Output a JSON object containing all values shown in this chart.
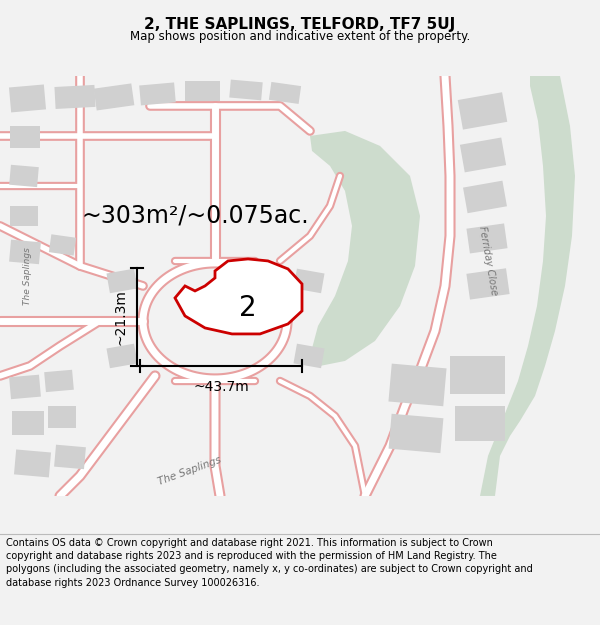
{
  "title": "2, THE SAPLINGS, TELFORD, TF7 5UJ",
  "subtitle": "Map shows position and indicative extent of the property.",
  "area_text": "~303m²/~0.075ac.",
  "width_text": "~43.7m",
  "height_text": "~21.3m",
  "label_number": "2",
  "footer_text": "Contains OS data © Crown copyright and database right 2021. This information is subject to Crown copyright and database rights 2023 and is reproduced with the permission of HM Land Registry. The polygons (including the associated geometry, namely x, y co-ordinates) are subject to Crown copyright and database rights 2023 Ordnance Survey 100026316.",
  "bg_color": "#f2f2f2",
  "map_bg": "#ffffff",
  "road_color": "#e8a0a0",
  "green_fill": "#cddccd",
  "gray_fill": "#d0d0d0",
  "highlight_color": "#cc0000",
  "title_fontsize": 11,
  "subtitle_fontsize": 8.5,
  "area_fontsize": 17,
  "label_fontsize": 20,
  "footer_fontsize": 7,
  "measure_fontsize": 10
}
